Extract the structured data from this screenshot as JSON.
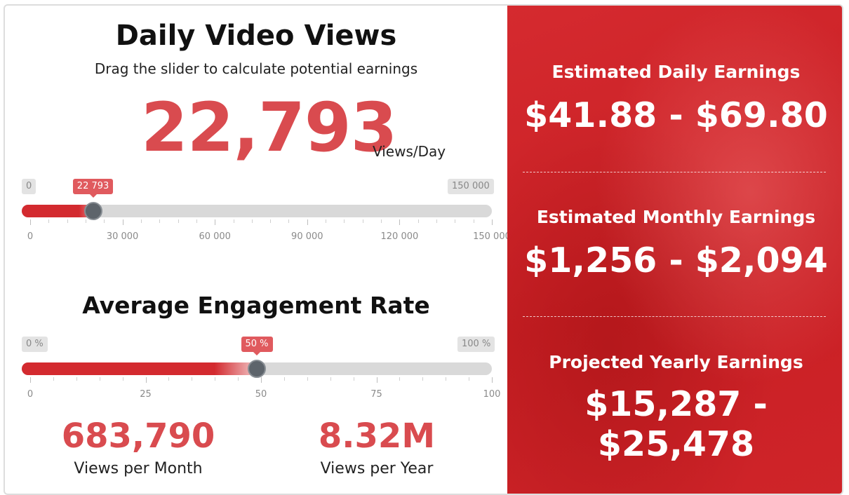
{
  "views": {
    "title": "Daily Video Views",
    "subtitle": "Drag the slider to calculate potential earnings",
    "value": "22,793",
    "unit": "Views/Day",
    "slider": {
      "min_label": "0",
      "max_label": "150 000",
      "current_label": "22 793",
      "min": 0,
      "max": 150000,
      "value": 22793,
      "ticks": [
        "0",
        "30 000",
        "60 000",
        "90 000",
        "120 000",
        "150 000"
      ]
    }
  },
  "engagement": {
    "title": "Average Engagement Rate",
    "slider": {
      "min_label": "0 %",
      "max_label": "100 %",
      "current_label": "50 %",
      "min": 0,
      "max": 100,
      "value": 50,
      "ticks": [
        "0",
        "25",
        "50",
        "75",
        "100"
      ]
    }
  },
  "stats": {
    "month_value": "683,790",
    "month_label": "Views per Month",
    "year_value": "8.32M",
    "year_label": "Views per Year"
  },
  "earnings": {
    "daily_title": "Estimated Daily Earnings",
    "daily_value": "$41.88 - $69.80",
    "monthly_title": "Estimated Monthly Earnings",
    "monthly_value": "$1,256 - $2,094",
    "yearly_title": "Projected Yearly Earnings",
    "yearly_value": "$15,287 - $25,478"
  },
  "colors": {
    "accent_red": "#d94b4f",
    "panel_red": "#d0262b",
    "fill_red": "#d32a2f",
    "knob": "#5d646b",
    "track": "#d9d9d9"
  }
}
